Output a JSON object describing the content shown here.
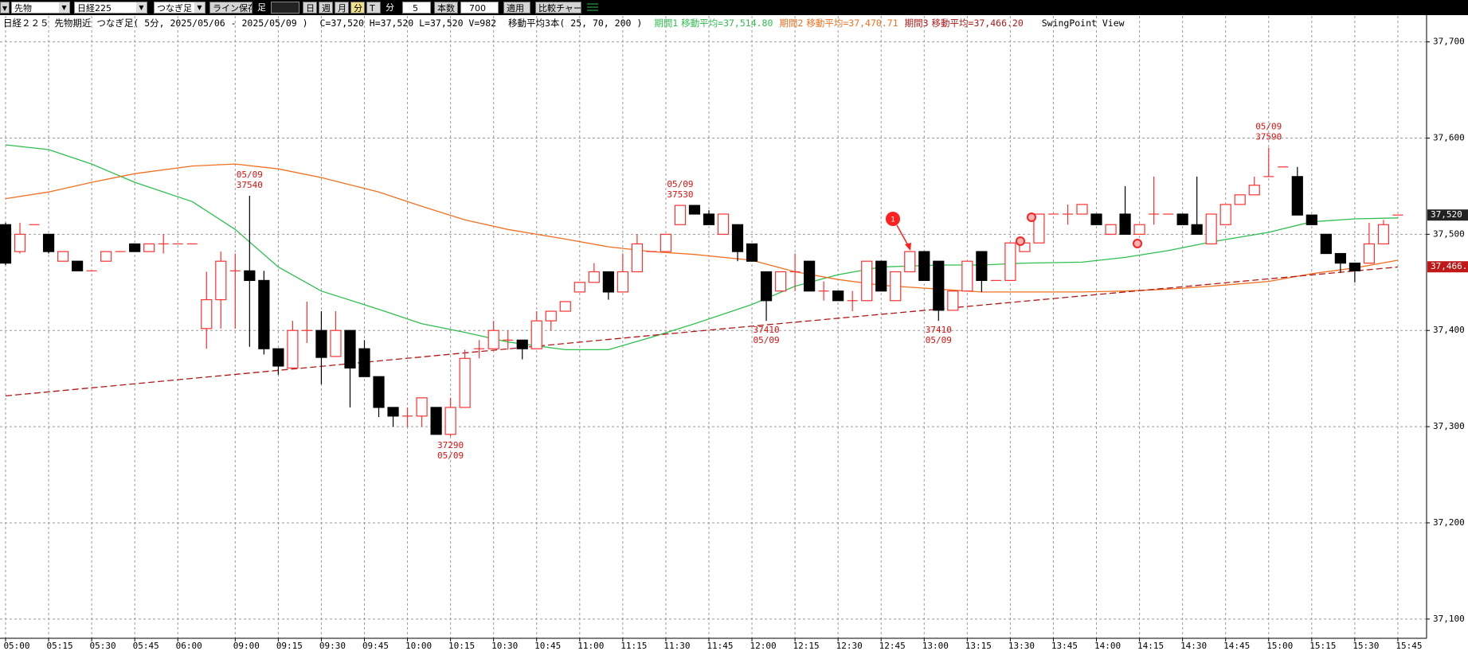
{
  "toolbar": {
    "market": "先物",
    "symbol": "日経225",
    "bar_type": "つなぎ足",
    "save_button": "ライン保存",
    "bar_label": "足",
    "periods": [
      "日",
      "週",
      "月",
      "分",
      "T"
    ],
    "unit": "分",
    "interval": "5",
    "count_label": "本数",
    "count": "700",
    "apply": "適用",
    "compare": "比較チャート"
  },
  "chart_data": {
    "type": "candlestick",
    "title": "日経２２５ 先物期近 つなぎ足( 5分, 2025/05/06 - 2025/05/09 )",
    "ohlcv": "C=37,520 H=37,520 L=37,520 V=982",
    "ma_title": "移動平均3本( 25, 70, 200 )",
    "view": "SwingPoint View",
    "categories": [
      "05:00",
      null,
      null,
      "05:15",
      null,
      null,
      "05:30",
      null,
      null,
      "05:45",
      null,
      null,
      "06:00",
      null,
      null,
      null,
      "09:00",
      null,
      null,
      "09:15",
      null,
      null,
      "09:30",
      null,
      null,
      "09:45",
      null,
      null,
      "10:00",
      null,
      null,
      "10:15",
      null,
      null,
      "10:30",
      null,
      null,
      "10:45",
      null,
      null,
      "11:00",
      null,
      null,
      "11:15",
      null,
      null,
      "11:30",
      null,
      null,
      "11:45",
      null,
      null,
      "12:00",
      null,
      null,
      "12:15",
      null,
      null,
      "12:30",
      null,
      null,
      "12:45",
      null,
      null,
      "13:00",
      null,
      null,
      "13:15",
      null,
      null,
      "13:30",
      null,
      null,
      "13:45",
      null,
      null,
      "14:00",
      null,
      null,
      "14:15",
      null,
      null,
      "14:30",
      null,
      null,
      "14:45",
      null,
      null,
      "15:00",
      null,
      null,
      "15:15",
      null,
      null,
      "15:30",
      null,
      null,
      "15:45"
    ],
    "open": [
      37510,
      37482,
      37510,
      37500,
      37472,
      37472,
      37462,
      37472,
      37482,
      37490,
      37482,
      37490,
      37490,
      37490,
      37402,
      37432,
      37462,
      37462,
      37452,
      37381,
      37361,
      37400,
      37400,
      37373,
      37400,
      37381,
      37352,
      37320,
      37311,
      37311,
      37320,
      37292,
      37320,
      37381,
      37381,
      37390,
      37390,
      37381,
      37410,
      37420,
      37440,
      37450,
      37461,
      37440,
      37461,
      37482,
      37482,
      37510,
      37530,
      37521,
      37500,
      37510,
      37490,
      37461,
      37441,
      37461,
      37472,
      37441,
      37441,
      37431,
      37431,
      37472,
      37431,
      37461,
      37482,
      37472,
      37421,
      37441,
      37482,
      37452,
      37452,
      37482,
      37491,
      37521,
      37521,
      37521,
      37521,
      37500,
      37521,
      37500,
      37521,
      37521,
      37521,
      37510,
      37490,
      37510,
      37531,
      37541,
      37560,
      37570,
      37560,
      37520,
      37500,
      37480,
      37470,
      37470,
      37490,
      37520
    ],
    "high": [
      37512,
      37512,
      37510,
      37500,
      37482,
      37472,
      37462,
      37482,
      37482,
      37490,
      37490,
      37500,
      37490,
      37490,
      37461,
      37482,
      37480,
      37540,
      37462,
      37381,
      37410,
      37430,
      37420,
      37420,
      37400,
      37390,
      37352,
      37320,
      37320,
      37330,
      37320,
      37330,
      37380,
      37390,
      37410,
      37400,
      37390,
      37420,
      37420,
      37430,
      37450,
      37470,
      37461,
      37480,
      37500,
      37482,
      37500,
      37530,
      37530,
      37525,
      37521,
      37510,
      37490,
      37461,
      37461,
      37480,
      37472,
      37451,
      37441,
      37441,
      37472,
      37472,
      37461,
      37482,
      37482,
      37472,
      37441,
      37472,
      37482,
      37452,
      37491,
      37491,
      37521,
      37521,
      37531,
      37531,
      37521,
      37510,
      37550,
      37510,
      37560,
      37521,
      37521,
      37560,
      37521,
      37531,
      37541,
      37560,
      37590,
      37570,
      37570,
      37520,
      37500,
      37480,
      37470,
      37512,
      37515,
      37520
    ],
    "low": [
      37468,
      37480,
      37510,
      37480,
      37472,
      37462,
      37462,
      37472,
      37482,
      37482,
      37482,
      37480,
      37490,
      37490,
      37381,
      37402,
      37402,
      37383,
      37375,
      37354,
      37361,
      37387,
      37344,
      37373,
      37320,
      37352,
      37310,
      37300,
      37300,
      37300,
      37292,
      37290,
      37320,
      37371,
      37381,
      37380,
      37370,
      37381,
      37400,
      37420,
      37440,
      37450,
      37432,
      37440,
      37461,
      37482,
      37482,
      37510,
      37521,
      37510,
      37500,
      37472,
      37472,
      37410,
      37441,
      37441,
      37441,
      37431,
      37431,
      37420,
      37431,
      37441,
      37431,
      37461,
      37452,
      37410,
      37421,
      37441,
      37440,
      37452,
      37452,
      37482,
      37491,
      37521,
      37510,
      37521,
      37510,
      37500,
      37500,
      37500,
      37510,
      37521,
      37510,
      37500,
      37490,
      37510,
      37531,
      37541,
      37560,
      37570,
      37520,
      37510,
      37480,
      37460,
      37450,
      37470,
      37490,
      37520
    ],
    "close": [
      37470,
      37500,
      37510,
      37482,
      37482,
      37462,
      37462,
      37482,
      37482,
      37482,
      37490,
      37490,
      37490,
      37490,
      37432,
      37472,
      37462,
      37452,
      37381,
      37363,
      37400,
      37400,
      37372,
      37400,
      37361,
      37352,
      37320,
      37311,
      37311,
      37330,
      37292,
      37320,
      37371,
      37381,
      37400,
      37390,
      37381,
      37410,
      37420,
      37430,
      37450,
      37461,
      37440,
      37461,
      37490,
      37482,
      37500,
      37530,
      37521,
      37510,
      37521,
      37482,
      37472,
      37431,
      37461,
      37461,
      37441,
      37441,
      37431,
      37431,
      37472,
      37441,
      37461,
      37482,
      37452,
      37421,
      37441,
      37472,
      37452,
      37452,
      37491,
      37491,
      37521,
      37521,
      37521,
      37531,
      37510,
      37510,
      37500,
      37510,
      37521,
      37521,
      37510,
      37500,
      37521,
      37531,
      37541,
      37551,
      37560,
      37570,
      37520,
      37510,
      37480,
      37470,
      37462,
      37490,
      37510,
      37520
    ],
    "up_color": "#ff3030",
    "down_color": "#000000",
    "series": [
      {
        "name": "期間1",
        "legend_text": "移動平均=37,514.80",
        "color": "#2fbf4f",
        "dashed": false,
        "x": [
          0,
          3,
          6,
          9,
          13,
          16,
          19,
          22,
          26,
          29,
          32,
          35,
          39,
          42,
          45,
          48,
          52,
          55,
          58,
          61,
          65,
          68,
          71,
          75,
          78,
          81,
          84,
          88,
          91,
          94,
          97
        ],
        "values": [
          37593,
          37588,
          37573,
          37554,
          37534,
          37505,
          37466,
          37441,
          37422,
          37407,
          37398,
          37388,
          37380,
          37380,
          37393,
          37407,
          37427,
          37446,
          37458,
          37466,
          37468,
          37468,
          37470,
          37471,
          37476,
          37483,
          37492,
          37502,
          37513,
          37516,
          37517
        ]
      },
      {
        "name": "期間2",
        "legend_text": "移動平均=37,470.71",
        "color": "#f07020",
        "dashed": false,
        "x": [
          0,
          3,
          6,
          9,
          13,
          16,
          19,
          22,
          26,
          29,
          32,
          35,
          39,
          42,
          45,
          48,
          52,
          55,
          58,
          61,
          65,
          68,
          71,
          75,
          78,
          81,
          84,
          88,
          91,
          94,
          97
        ],
        "values": [
          37537,
          37544,
          37554,
          37563,
          37571,
          37573,
          37568,
          37559,
          37544,
          37529,
          37515,
          37505,
          37495,
          37487,
          37482,
          37479,
          37473,
          37461,
          37453,
          37447,
          37443,
          37440,
          37440,
          37440,
          37441,
          37443,
          37446,
          37451,
          37459,
          37465,
          37473
        ]
      },
      {
        "name": "期間3",
        "legend_text": "移動平均=37,466.20",
        "color": "#b01818",
        "dashed": true,
        "x": [
          0,
          48,
          97
        ],
        "values": [
          37332,
          37399,
          37466
        ]
      }
    ],
    "ylim": [
      37080,
      37727
    ],
    "yticks": [
      {
        "value": 37100,
        "label": "37,100"
      },
      {
        "value": 37200,
        "label": "37,200"
      },
      {
        "value": 37300,
        "label": "37,300"
      },
      {
        "value": 37400,
        "label": "37,400"
      },
      {
        "value": 37500,
        "label": "37,500"
      },
      {
        "value": 37600,
        "label": "37,600"
      },
      {
        "value": 37700,
        "label": "37,700"
      }
    ],
    "grid": true,
    "swing_points": [
      {
        "x": 17,
        "date": "05/09",
        "price": 37540
      },
      {
        "x": 31,
        "date": "05/09",
        "price": 37290
      },
      {
        "x": 47,
        "date": "05/09",
        "price": 37530
      },
      {
        "x": 53,
        "date": "05/09",
        "price": 37410
      },
      {
        "x": 65,
        "date": "05/09",
        "price": 37410
      },
      {
        "x": 88,
        "date": "05/09",
        "price": 37590
      }
    ],
    "last_price": {
      "value": 37520,
      "label": "37,520"
    },
    "ma_price": {
      "value": 37466.2,
      "label": "37,466."
    },
    "marker_text": "1"
  }
}
